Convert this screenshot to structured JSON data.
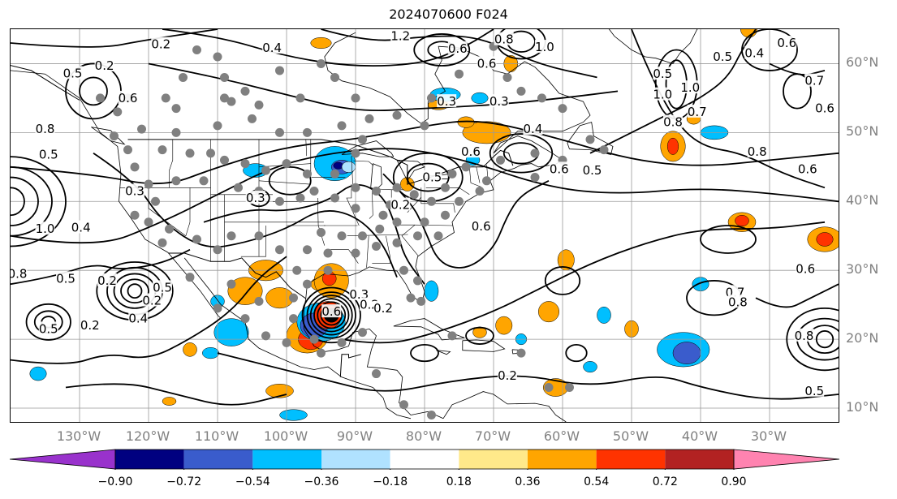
{
  "title": "2024070600 F024",
  "map": {
    "projection": "lat-lon",
    "lon_range_deg": [
      -140,
      -20
    ],
    "lat_range_deg": [
      8,
      65
    ],
    "longitude_labels": [
      "130°W",
      "120°W",
      "110°W",
      "100°W",
      "90°W",
      "80°W",
      "70°W",
      "60°W",
      "50°W",
      "40°W",
      "30°W"
    ],
    "latitude_labels": [
      "60°N",
      "50°N",
      "40°N",
      "30°N",
      "20°N",
      "10°N"
    ],
    "gridlines": true,
    "filled_field": {
      "colormap_colors": [
        "#9932cc",
        "#000080",
        "#3a5ccc",
        "#00bfff",
        "#b0e2ff",
        "#ffffff",
        "#ffe98a",
        "#ffa500",
        "#ff3300",
        "#b22222",
        "#ff83b0"
      ],
      "extend": "both"
    },
    "contour_labels": [
      {
        "text": "0.2",
        "lon": -118.2,
        "lat": 62.8
      },
      {
        "text": "0.4",
        "lon": -102.1,
        "lat": 62.3
      },
      {
        "text": "1.2",
        "lon": -83.5,
        "lat": 64.0
      },
      {
        "text": "0.8",
        "lon": -68.5,
        "lat": 63.5
      },
      {
        "text": "0.6",
        "lon": -75.2,
        "lat": 62.2
      },
      {
        "text": "1.0",
        "lon": -62.6,
        "lat": 62.4
      },
      {
        "text": "0.6",
        "lon": -71.0,
        "lat": 60.0
      },
      {
        "text": "0.3",
        "lon": -76.8,
        "lat": 54.5
      },
      {
        "text": "0.3",
        "lon": -69.2,
        "lat": 54.5
      },
      {
        "text": "0.4",
        "lon": -64.3,
        "lat": 50.5
      },
      {
        "text": "0.6",
        "lon": -60.5,
        "lat": 44.7
      },
      {
        "text": "0.5",
        "lon": -55.7,
        "lat": 44.5
      },
      {
        "text": "0.6",
        "lon": -73.3,
        "lat": 47.2
      },
      {
        "text": "0.5",
        "lon": -78.9,
        "lat": 43.5
      },
      {
        "text": "0.6",
        "lon": -71.8,
        "lat": 36.4
      },
      {
        "text": "0.5",
        "lon": -131.0,
        "lat": 58.6
      },
      {
        "text": "0.2",
        "lon": -126.4,
        "lat": 59.7
      },
      {
        "text": "0.6",
        "lon": -123.0,
        "lat": 55.0
      },
      {
        "text": "0.5",
        "lon": -134.5,
        "lat": 46.8
      },
      {
        "text": "0.8",
        "lon": -135.0,
        "lat": 50.5
      },
      {
        "text": "0.3",
        "lon": -122.0,
        "lat": 41.5
      },
      {
        "text": "0.4",
        "lon": -129.8,
        "lat": 36.2
      },
      {
        "text": "1.0",
        "lon": -135.0,
        "lat": 36.0
      },
      {
        "text": "0.5",
        "lon": -132.0,
        "lat": 28.8
      },
      {
        "text": "0.8",
        "lon": -139.0,
        "lat": 29.5
      },
      {
        "text": "0.2",
        "lon": -126.0,
        "lat": 28.5
      },
      {
        "text": "0.5",
        "lon": -118.0,
        "lat": 27.5
      },
      {
        "text": "0.2",
        "lon": -119.5,
        "lat": 25.6
      },
      {
        "text": "0.4",
        "lon": -121.5,
        "lat": 23.0
      },
      {
        "text": "0.2",
        "lon": -128.5,
        "lat": 22.0
      },
      {
        "text": "0.5",
        "lon": -134.5,
        "lat": 21.5
      },
      {
        "text": "0.3",
        "lon": -104.5,
        "lat": 40.5
      },
      {
        "text": "0.2",
        "lon": -83.5,
        "lat": 39.5
      },
      {
        "text": "0.3",
        "lon": -89.5,
        "lat": 26.5
      },
      {
        "text": "0.2",
        "lon": -88.0,
        "lat": 25.0
      },
      {
        "text": "0.2",
        "lon": -86.0,
        "lat": 24.5
      },
      {
        "text": "0.6",
        "lon": -93.5,
        "lat": 24.0
      },
      {
        "text": "0.2",
        "lon": -68.0,
        "lat": 14.7
      },
      {
        "text": "0.5",
        "lon": -45.5,
        "lat": 58.5
      },
      {
        "text": "1.0",
        "lon": -45.5,
        "lat": 55.5
      },
      {
        "text": "1.0",
        "lon": -41.5,
        "lat": 56.5
      },
      {
        "text": "0.8",
        "lon": -44.0,
        "lat": 51.5
      },
      {
        "text": "0.7",
        "lon": -40.5,
        "lat": 53.0
      },
      {
        "text": "0.5",
        "lon": -36.8,
        "lat": 61.0
      },
      {
        "text": "0.4",
        "lon": -32.2,
        "lat": 61.5
      },
      {
        "text": "0.6",
        "lon": -27.5,
        "lat": 63.0
      },
      {
        "text": "0.7",
        "lon": -23.5,
        "lat": 57.5
      },
      {
        "text": "0.6",
        "lon": -22.0,
        "lat": 53.5
      },
      {
        "text": "0.8",
        "lon": -31.8,
        "lat": 47.2
      },
      {
        "text": "0.6",
        "lon": -24.5,
        "lat": 44.7
      },
      {
        "text": "0.6",
        "lon": -24.8,
        "lat": 30.2
      },
      {
        "text": "0.7",
        "lon": -35.0,
        "lat": 26.8
      },
      {
        "text": "0.8",
        "lon": -34.6,
        "lat": 25.4
      },
      {
        "text": "0.8",
        "lon": -25.0,
        "lat": 20.5
      },
      {
        "text": "0.5",
        "lon": -23.5,
        "lat": 12.5
      }
    ],
    "hurricane_center": {
      "lon": -93.5,
      "lat": 23.5
    },
    "station_dots_color": "#808080"
  },
  "colorbar": {
    "tick_labels": [
      "−0.90",
      "−0.72",
      "−0.54",
      "−0.36",
      "−0.18",
      "0.18",
      "0.36",
      "0.54",
      "0.72",
      "0.90"
    ]
  }
}
